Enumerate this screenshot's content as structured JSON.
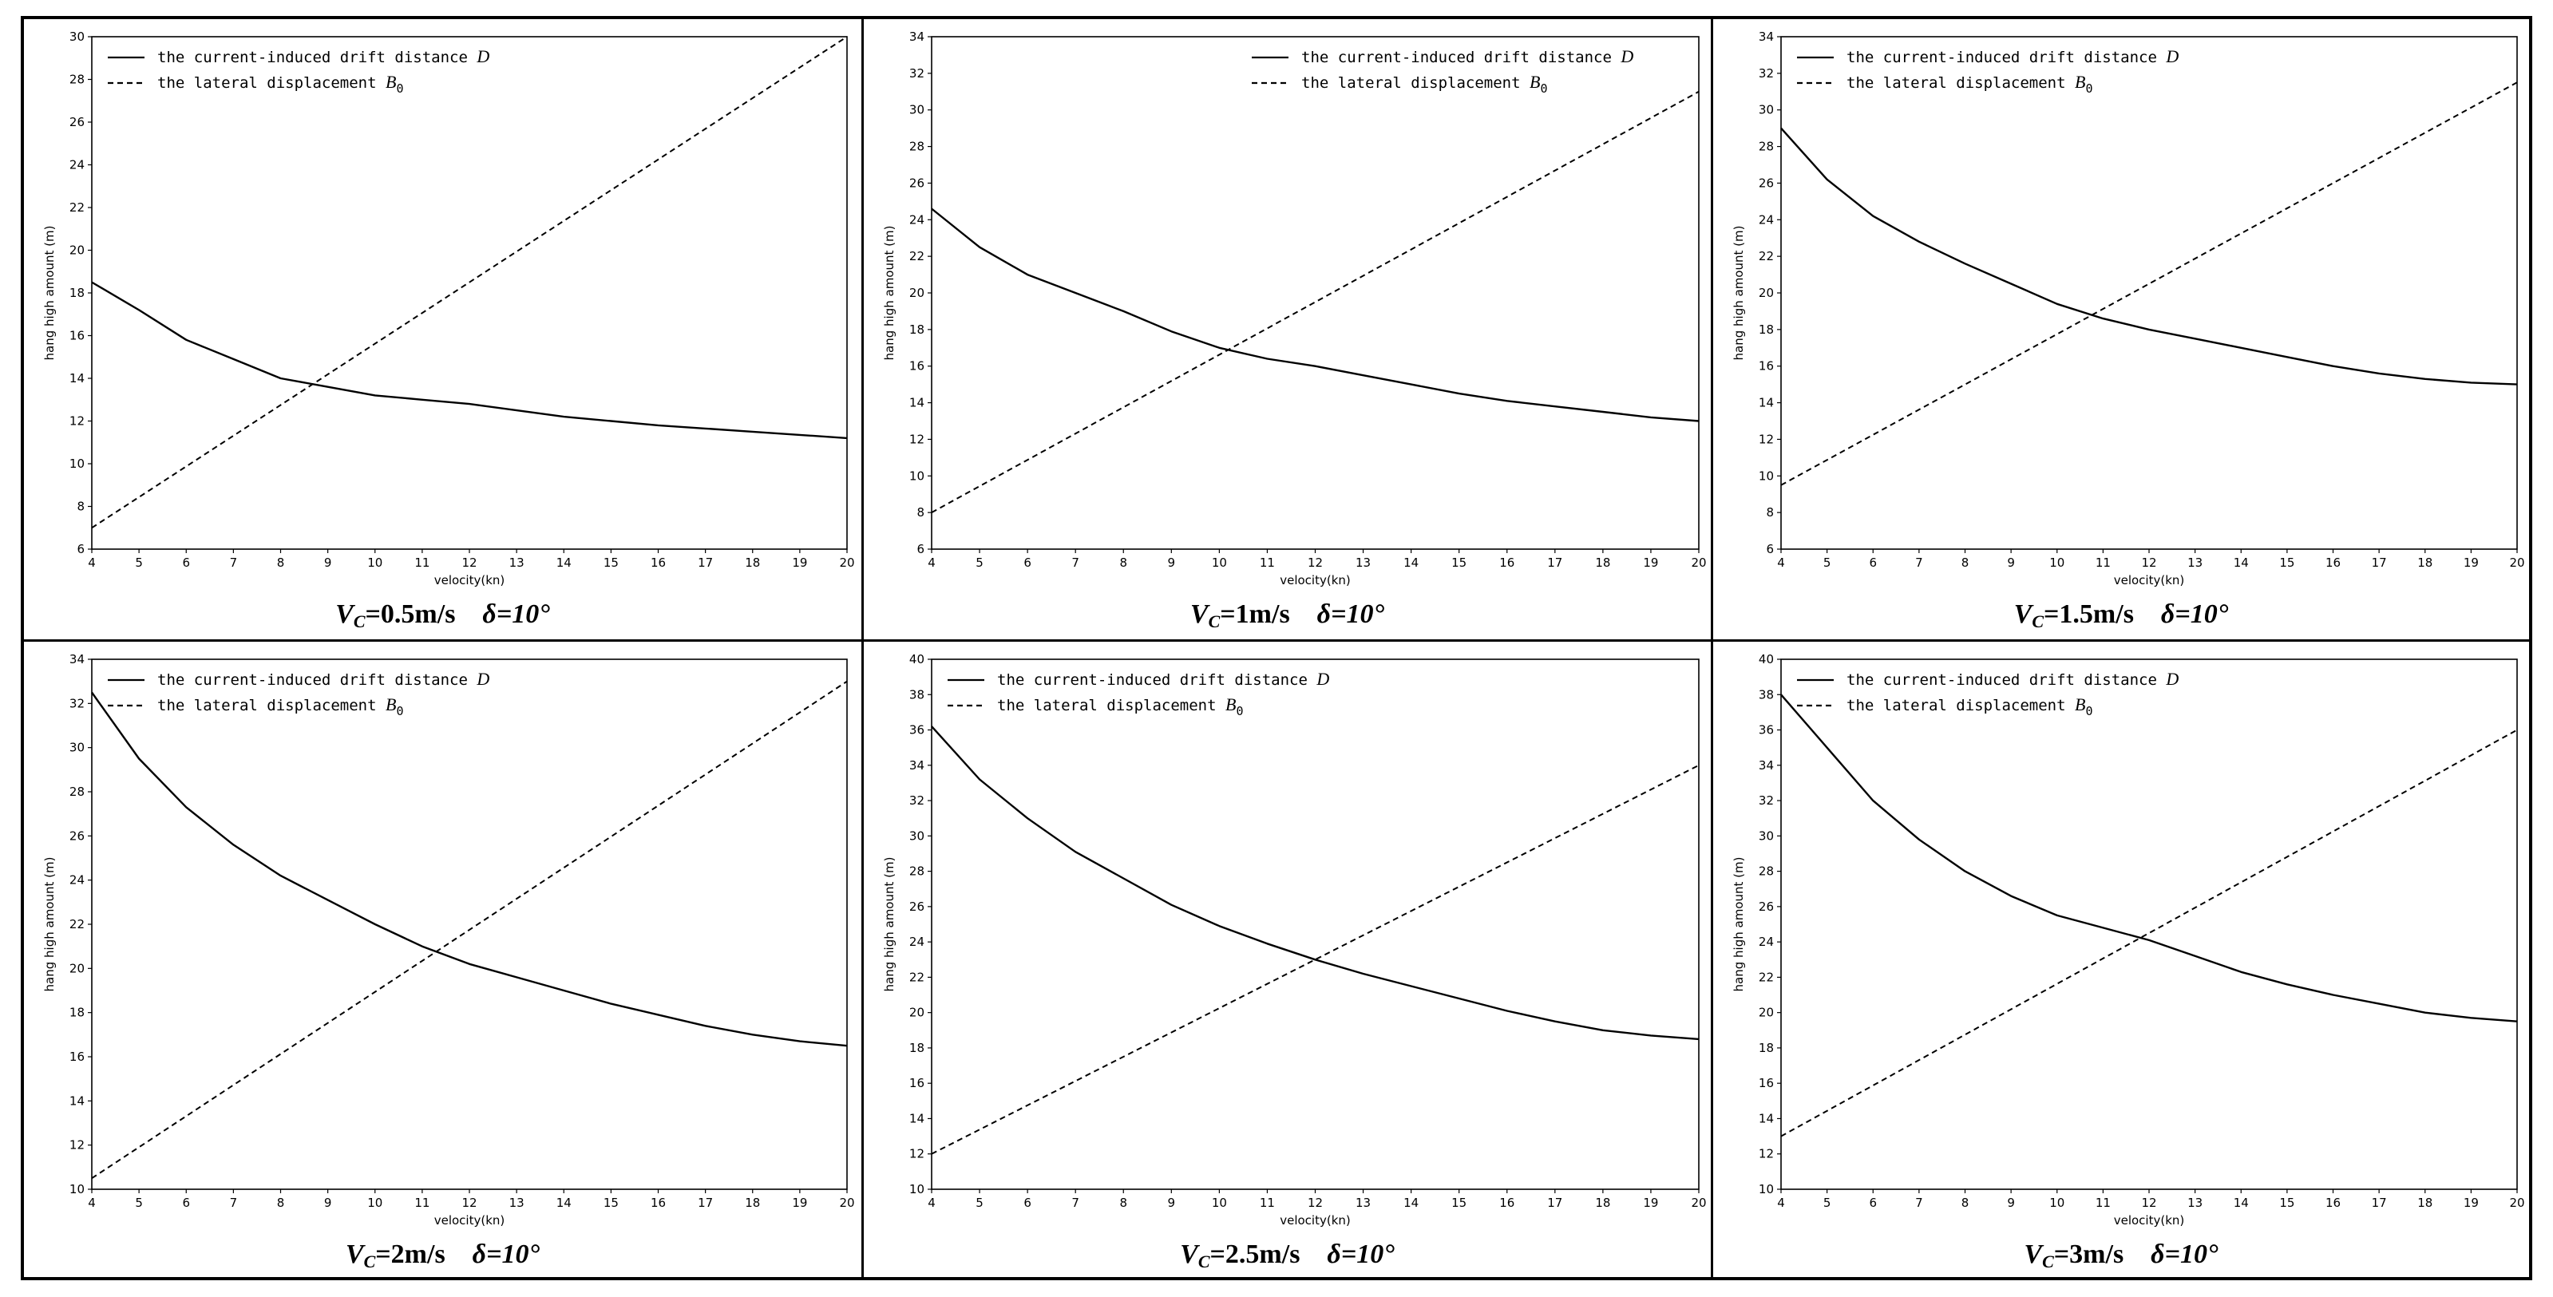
{
  "chart_data": [
    {
      "type": "line",
      "xlabel": "velocity(kn)",
      "ylabel": "hang high amount (m)",
      "xlim": [
        4,
        20
      ],
      "ylim": [
        6,
        30
      ],
      "xticks": [
        4,
        5,
        6,
        7,
        8,
        9,
        10,
        11,
        12,
        13,
        14,
        15,
        16,
        17,
        18,
        19,
        20
      ],
      "yticks": [
        6,
        8,
        10,
        12,
        14,
        16,
        18,
        20,
        22,
        24,
        26,
        28,
        30
      ],
      "legend_position": "top-left",
      "caption": {
        "v": "V",
        "sub": "C",
        "rest": "=0.5m/s",
        "delta": "δ=10°"
      },
      "series": [
        {
          "name": "the current-induced drift distance ",
          "name_var": "D",
          "style": "solid",
          "x": [
            4,
            5,
            6,
            7,
            8,
            9,
            10,
            11,
            12,
            13,
            14,
            15,
            16,
            17,
            18,
            19,
            20
          ],
          "y": [
            18.5,
            17.2,
            15.8,
            14.9,
            14.0,
            13.6,
            13.2,
            13.0,
            12.8,
            12.5,
            12.2,
            12.0,
            11.8,
            11.65,
            11.5,
            11.35,
            11.2
          ]
        },
        {
          "name": "the lateral displacement ",
          "name_var": "B",
          "name_sub": "0",
          "style": "dashed",
          "x": [
            4,
            20
          ],
          "y": [
            7,
            30
          ]
        }
      ]
    },
    {
      "type": "line",
      "xlabel": "velocity(kn)",
      "ylabel": "hang high amount (m)",
      "xlim": [
        4,
        20
      ],
      "ylim": [
        6,
        34
      ],
      "xticks": [
        4,
        5,
        6,
        7,
        8,
        9,
        10,
        11,
        12,
        13,
        14,
        15,
        16,
        17,
        18,
        19,
        20
      ],
      "yticks": [
        6,
        8,
        10,
        12,
        14,
        16,
        18,
        20,
        22,
        24,
        26,
        28,
        30,
        32,
        34
      ],
      "legend_position": "top-right",
      "caption": {
        "v": "V",
        "sub": "C",
        "rest": "=1m/s",
        "delta": "δ=10°"
      },
      "series": [
        {
          "name": "the current-induced drift distance ",
          "name_var": "D",
          "style": "solid",
          "x": [
            4,
            5,
            6,
            7,
            8,
            9,
            10,
            11,
            12,
            13,
            14,
            15,
            16,
            17,
            18,
            19,
            20
          ],
          "y": [
            24.6,
            22.5,
            21.0,
            20.0,
            19.0,
            17.9,
            17.0,
            16.4,
            16.0,
            15.5,
            15.0,
            14.5,
            14.1,
            13.8,
            13.5,
            13.2,
            13.0
          ]
        },
        {
          "name": "the lateral displacement ",
          "name_var": "B",
          "name_sub": "0",
          "style": "dashed",
          "x": [
            4,
            20
          ],
          "y": [
            8,
            31
          ]
        }
      ]
    },
    {
      "type": "line",
      "xlabel": "velocity(kn)",
      "ylabel": "hang high amount (m)",
      "xlim": [
        4,
        20
      ],
      "ylim": [
        6,
        34
      ],
      "xticks": [
        4,
        5,
        6,
        7,
        8,
        9,
        10,
        11,
        12,
        13,
        14,
        15,
        16,
        17,
        18,
        19,
        20
      ],
      "yticks": [
        6,
        8,
        10,
        12,
        14,
        16,
        18,
        20,
        22,
        24,
        26,
        28,
        30,
        32,
        34
      ],
      "legend_position": "top-left",
      "caption": {
        "v": "V",
        "sub": "C",
        "rest": "=1.5m/s",
        "delta": "δ=10°"
      },
      "series": [
        {
          "name": "the current-induced drift distance ",
          "name_var": "D",
          "style": "solid",
          "x": [
            4,
            5,
            6,
            7,
            8,
            9,
            10,
            11,
            12,
            13,
            14,
            15,
            16,
            17,
            18,
            19,
            20
          ],
          "y": [
            29.0,
            26.2,
            24.2,
            22.8,
            21.6,
            20.5,
            19.4,
            18.6,
            18.0,
            17.5,
            17.0,
            16.5,
            16.0,
            15.6,
            15.3,
            15.1,
            15.0
          ]
        },
        {
          "name": "the lateral displacement ",
          "name_var": "B",
          "name_sub": "0",
          "style": "dashed",
          "x": [
            4,
            20
          ],
          "y": [
            9.5,
            31.5
          ]
        }
      ]
    },
    {
      "type": "line",
      "xlabel": "velocity(kn)",
      "ylabel": "hang high amount (m)",
      "xlim": [
        4,
        20
      ],
      "ylim": [
        10,
        34
      ],
      "xticks": [
        4,
        5,
        6,
        7,
        8,
        9,
        10,
        11,
        12,
        13,
        14,
        15,
        16,
        17,
        18,
        19,
        20
      ],
      "yticks": [
        10,
        12,
        14,
        16,
        18,
        20,
        22,
        24,
        26,
        28,
        30,
        32,
        34
      ],
      "legend_position": "top-left",
      "caption": {
        "v": "V",
        "sub": "C",
        "rest": "=2m/s",
        "delta": "δ=10°"
      },
      "series": [
        {
          "name": "the current-induced drift distance ",
          "name_var": "D",
          "style": "solid",
          "x": [
            4,
            5,
            6,
            7,
            8,
            9,
            10,
            11,
            12,
            13,
            14,
            15,
            16,
            17,
            18,
            19,
            20
          ],
          "y": [
            32.5,
            29.5,
            27.3,
            25.6,
            24.2,
            23.1,
            22.0,
            21.0,
            20.2,
            19.6,
            19.0,
            18.4,
            17.9,
            17.4,
            17.0,
            16.7,
            16.5
          ]
        },
        {
          "name": "the lateral displacement ",
          "name_var": "B",
          "name_sub": "0",
          "style": "dashed",
          "x": [
            4,
            20
          ],
          "y": [
            10.5,
            33
          ]
        }
      ]
    },
    {
      "type": "line",
      "xlabel": "velocity(kn)",
      "ylabel": "hang high amount (m)",
      "xlim": [
        4,
        20
      ],
      "ylim": [
        10,
        40
      ],
      "xticks": [
        4,
        5,
        6,
        7,
        8,
        9,
        10,
        11,
        12,
        13,
        14,
        15,
        16,
        17,
        18,
        19,
        20
      ],
      "yticks": [
        10,
        12,
        14,
        16,
        18,
        20,
        22,
        24,
        26,
        28,
        30,
        32,
        34,
        36,
        38,
        40
      ],
      "legend_position": "top-left",
      "caption": {
        "v": "V",
        "sub": "C",
        "rest": "=2.5m/s",
        "delta": "δ=10°"
      },
      "series": [
        {
          "name": "the current-induced drift distance ",
          "name_var": "D",
          "style": "solid",
          "x": [
            4,
            5,
            6,
            7,
            8,
            9,
            10,
            11,
            12,
            13,
            14,
            15,
            16,
            17,
            18,
            19,
            20
          ],
          "y": [
            36.2,
            33.2,
            31.0,
            29.1,
            27.6,
            26.1,
            24.9,
            23.9,
            23.0,
            22.2,
            21.5,
            20.8,
            20.1,
            19.5,
            19.0,
            18.7,
            18.5
          ]
        },
        {
          "name": "the lateral displacement ",
          "name_var": "B",
          "name_sub": "0",
          "style": "dashed",
          "x": [
            4,
            20
          ],
          "y": [
            12,
            34
          ]
        }
      ]
    },
    {
      "type": "line",
      "xlabel": "velocity(kn)",
      "ylabel": "hang high amount (m)",
      "xlim": [
        4,
        20
      ],
      "ylim": [
        10,
        40
      ],
      "xticks": [
        4,
        5,
        6,
        7,
        8,
        9,
        10,
        11,
        12,
        13,
        14,
        15,
        16,
        17,
        18,
        19,
        20
      ],
      "yticks": [
        10,
        12,
        14,
        16,
        18,
        20,
        22,
        24,
        26,
        28,
        30,
        32,
        34,
        36,
        38,
        40
      ],
      "legend_position": "top-left",
      "caption": {
        "v": "V",
        "sub": "C",
        "rest": "=3m/s",
        "delta": "δ=10°"
      },
      "series": [
        {
          "name": "the current-induced drift distance ",
          "name_var": "D",
          "style": "solid",
          "x": [
            4,
            5,
            6,
            7,
            8,
            9,
            10,
            11,
            12,
            13,
            14,
            15,
            16,
            17,
            18,
            19,
            20
          ],
          "y": [
            38.0,
            35.0,
            32.0,
            29.8,
            28.0,
            26.6,
            25.5,
            24.8,
            24.1,
            23.2,
            22.3,
            21.6,
            21.0,
            20.5,
            20.0,
            19.7,
            19.5
          ]
        },
        {
          "name": "the lateral displacement ",
          "name_var": "B",
          "name_sub": "0",
          "style": "dashed",
          "x": [
            4,
            20
          ],
          "y": [
            13,
            36
          ]
        }
      ]
    }
  ]
}
